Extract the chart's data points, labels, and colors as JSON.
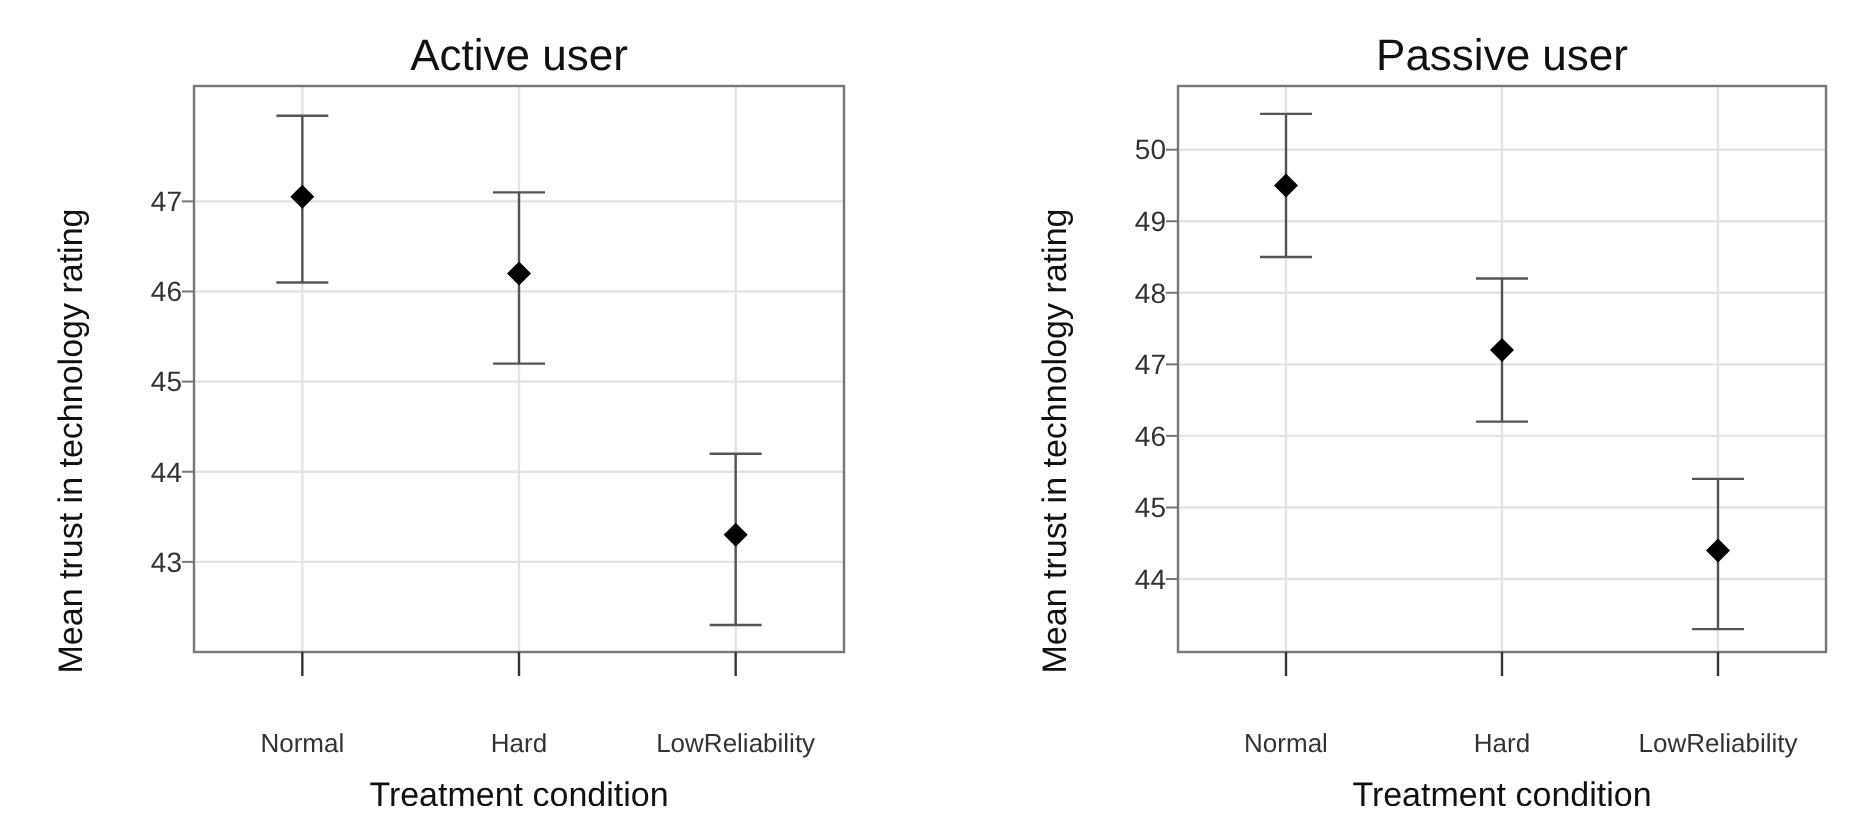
{
  "chart_data": [
    {
      "type": "scatter",
      "title": "Active user",
      "xlabel": "Treatment condition",
      "ylabel": "Mean trust in technology rating",
      "categories": [
        "Normal",
        "Hard",
        "LowReliability"
      ],
      "series": [
        {
          "color": "#000000",
          "values": [
            47.05,
            46.2,
            43.3
          ],
          "errors": [
            [
              46.1,
              47.95
            ],
            [
              45.2,
              47.1
            ],
            [
              42.3,
              44.2
            ]
          ]
        }
      ],
      "ylim": [
        42.0,
        48.28
      ],
      "yticks": [
        43,
        44,
        45,
        46,
        47
      ],
      "grid": true,
      "marker": "diamond"
    },
    {
      "type": "scatter",
      "title": "Passive user",
      "xlabel": "Treatment condition",
      "ylabel": "Mean trust in technology rating",
      "categories": [
        "Normal",
        "Hard",
        "LowReliability"
      ],
      "series": [
        {
          "color": "#000000",
          "values": [
            49.5,
            47.2,
            44.4
          ],
          "errors": [
            [
              48.5,
              50.5
            ],
            [
              46.2,
              48.2
            ],
            [
              43.3,
              45.4
            ]
          ]
        }
      ],
      "ylim": [
        42.98,
        50.89
      ],
      "yticks": [
        44,
        45,
        46,
        47,
        48,
        49,
        50
      ],
      "grid": true,
      "marker": "diamond"
    }
  ]
}
